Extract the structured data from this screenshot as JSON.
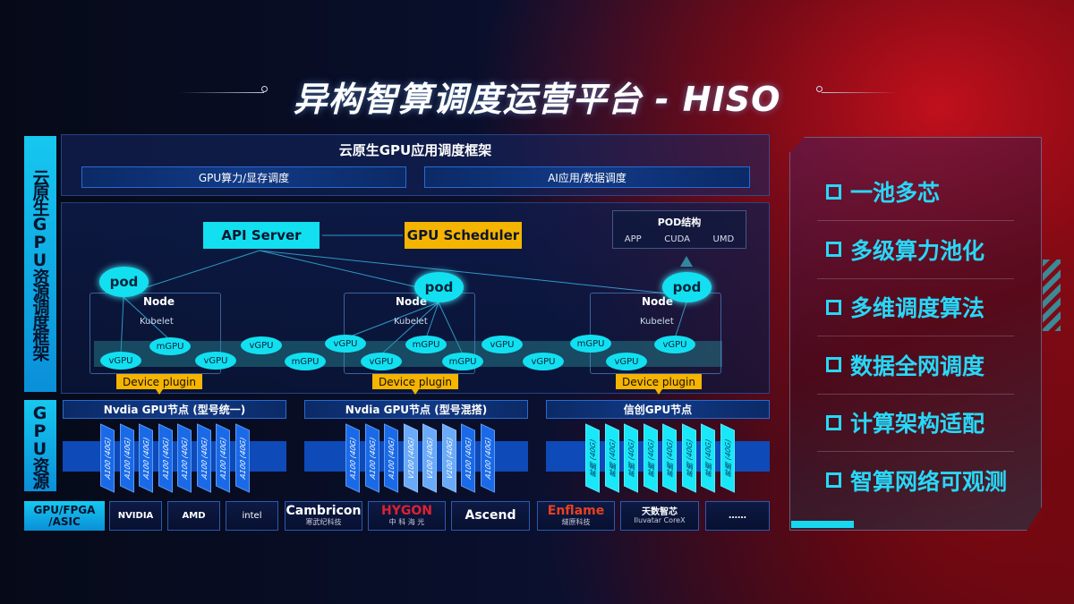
{
  "title": "异构智算调度运营平台 - HISO",
  "side_labels": {
    "framework": "云原生GPU资源调度框架",
    "resources": "GPU资源",
    "chips": "GPU/FPGA /ASIC"
  },
  "app_framework": {
    "title": "云原生GPU应用调度框架",
    "left": "GPU算力/显存调度",
    "right": "AI应用/数据调度"
  },
  "diagram": {
    "api_server": "API Server",
    "gpu_scheduler": "GPU Scheduler",
    "pod_structure": {
      "title": "POD结构",
      "items": [
        "APP",
        "CUDA",
        "UMD"
      ]
    },
    "node_label": "Node",
    "kubelet_label": "Kubelet",
    "pod_label": "pod",
    "device_plugin": "Device plugin",
    "gpu_units": [
      "vGPU",
      "mGPU",
      "vGPU",
      "vGPU",
      "mGPU",
      "vGPU",
      "vGPU",
      "mGPU",
      "mGPU",
      "vGPU",
      "vGPU",
      "mGPU",
      "vGPU",
      "vGPU"
    ]
  },
  "gpu_nodes": [
    {
      "title": "Nvdia GPU节点 (型号统一)",
      "cards": [
        "A100 (40G)",
        "A100 (40G)",
        "A100 (40G)",
        "A100 (40G)",
        "A100 (40G)",
        "A100 (40G)",
        "A100 (40G)",
        "A100 (40G)"
      ]
    },
    {
      "title": "Nvdia GPU节点 (型号混搭)",
      "cards": [
        "A100 (40G)",
        "A100 (40G)",
        "A100 (40G)",
        "V100 (40G)",
        "V100 (40G)",
        "V100 (40G)",
        "A100 (40G)",
        "A100 (40G)"
      ]
    },
    {
      "title": "信创GPU节点",
      "cards": [
        "昇腾 (40G)",
        "昇腾 (40G)",
        "昇腾 (40G)",
        "昇腾 (40G)",
        "昇腾 (40G)",
        "昇腾 (40G)",
        "昇腾 (40G)",
        "昇腾 (40G)"
      ]
    }
  ],
  "vendors": [
    {
      "name": "NVIDIA",
      "sub": ""
    },
    {
      "name": "AMD",
      "sub": ""
    },
    {
      "name": "intel",
      "sub": ""
    },
    {
      "name": "Cambricon",
      "sub": "寒武纪科技"
    },
    {
      "name": "HYGON",
      "sub": "中 科 海 光"
    },
    {
      "name": "Ascend",
      "sub": ""
    },
    {
      "name": "Enflame",
      "sub": "燧原科技"
    },
    {
      "name": "天数智芯",
      "sub": "Iluvatar CoreX"
    },
    {
      "name": "……",
      "sub": ""
    }
  ],
  "features": [
    "一池多芯",
    "多级算力池化",
    "多维调度算法",
    "数据全网调度",
    "计算架构适配",
    "智算网络可观测"
  ],
  "colors": {
    "cyan": "#12e0f0",
    "yellow": "#f5b400",
    "card_blue": "#1a6ae8",
    "card_light": "#6aaaf8",
    "card_cyan": "#18e8f8",
    "feature_text": "#28d8f8"
  }
}
